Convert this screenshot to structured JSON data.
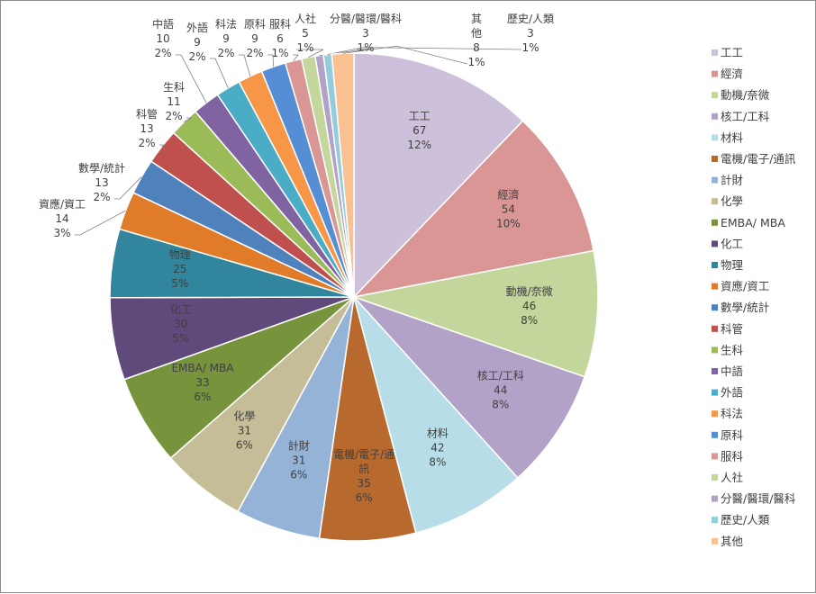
{
  "chart_data": {
    "type": "pie",
    "title": "",
    "legend_position": "right",
    "slices": [
      {
        "label": "工工",
        "value": 67,
        "percent": "12%",
        "color": "#ccc0da"
      },
      {
        "label": "經濟",
        "value": 54,
        "percent": "10%",
        "color": "#d99694"
      },
      {
        "label": "動機/奈微",
        "value": 46,
        "percent": "8%",
        "color": "#c3d69b"
      },
      {
        "label": "核工/工科",
        "value": 44,
        "percent": "8%",
        "color": "#b3a2c7"
      },
      {
        "label": "材料",
        "value": 42,
        "percent": "8%",
        "color": "#b7dee8"
      },
      {
        "label": "電機/電子/通訊",
        "value": 35,
        "percent": "6%",
        "color": "#b8692e"
      },
      {
        "label": "計財",
        "value": 31,
        "percent": "6%",
        "color": "#95b3d7"
      },
      {
        "label": "化學",
        "value": 31,
        "percent": "6%",
        "color": "#c4bd97"
      },
      {
        "label": "EMBA/ MBA",
        "value": 33,
        "percent": "6%",
        "color": "#77933c"
      },
      {
        "label": "化工",
        "value": 30,
        "percent": "5%",
        "color": "#604a7b"
      },
      {
        "label": "物理",
        "value": 25,
        "percent": "5%",
        "color": "#31859c"
      },
      {
        "label": "資應/資工",
        "value": 14,
        "percent": "3%",
        "color": "#e07b2a"
      },
      {
        "label": "數學/統計",
        "value": 13,
        "percent": "2%",
        "color": "#4f81bd"
      },
      {
        "label": "科管",
        "value": 13,
        "percent": "2%",
        "color": "#c0504d"
      },
      {
        "label": "生科",
        "value": 11,
        "percent": "2%",
        "color": "#9bbb59"
      },
      {
        "label": "中語",
        "value": 10,
        "percent": "2%",
        "color": "#8064a2"
      },
      {
        "label": "外語",
        "value": 9,
        "percent": "2%",
        "color": "#4bacc6"
      },
      {
        "label": "科法",
        "value": 9,
        "percent": "2%",
        "color": "#f79646"
      },
      {
        "label": "原科",
        "value": 9,
        "percent": "2%",
        "color": "#558ed5"
      },
      {
        "label": "服科",
        "value": 6,
        "percent": "1%",
        "color": "#d99694"
      },
      {
        "label": "人社",
        "value": 5,
        "percent": "1%",
        "color": "#c3d69b"
      },
      {
        "label": "分醫/醫環/醫科",
        "value": 3,
        "percent": "1%",
        "color": "#b3a2c7"
      },
      {
        "label": "歷史/人類",
        "value": 3,
        "percent": "1%",
        "color": "#93cddd"
      },
      {
        "label": "其他",
        "value": 8,
        "percent": "1%",
        "color": "#fac090"
      }
    ]
  }
}
